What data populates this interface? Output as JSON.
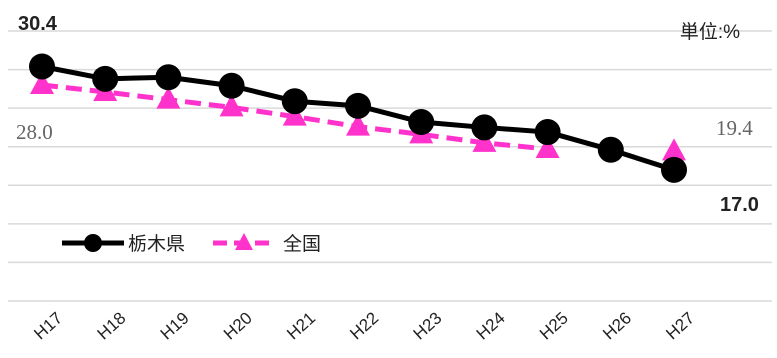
{
  "chart_data": {
    "type": "line",
    "title": "",
    "unit_label": "単位:%",
    "categories": [
      "H17",
      "H18",
      "H19",
      "H20",
      "H21",
      "H22",
      "H23",
      "H24",
      "H25",
      "H26",
      "H27"
    ],
    "ylim": [
      0,
      35
    ],
    "grid": true,
    "legend_position": "bottom-left",
    "series": [
      {
        "name": "栃木県",
        "color": "#000000",
        "marker": "circle",
        "line_style": "solid",
        "values": [
          30.4,
          28.8,
          29.0,
          27.9,
          25.9,
          25.3,
          23.2,
          22.5,
          21.9,
          19.6,
          17.0
        ]
      },
      {
        "name": "全国",
        "color": "#ff33cc",
        "marker": "triangle",
        "line_style": "dashed",
        "values": [
          28.0,
          27.1,
          26.1,
          25.1,
          23.9,
          22.6,
          21.6,
          20.5,
          19.7,
          null,
          19.4
        ]
      }
    ],
    "annotations": {
      "s0_first": "30.4",
      "s1_first": "28.0",
      "s1_last": "19.4",
      "s0_last": "17.0"
    }
  }
}
